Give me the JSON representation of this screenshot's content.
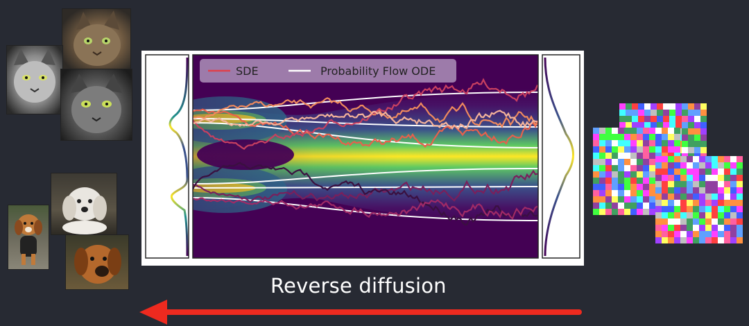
{
  "caption": "Reverse diffusion",
  "legend": {
    "sde_label": "SDE",
    "ode_label": "Probability Flow ODE"
  },
  "images": {
    "cats": [
      "cat-photo",
      "cat-photo",
      "cat-photo"
    ],
    "dogs": [
      "dog-photo",
      "dog-photo",
      "dog-photo"
    ],
    "noise": [
      "noise-patch",
      "noise-patch",
      "noise-patch"
    ]
  },
  "colors": {
    "background": "#272a33",
    "arrow": "#ee2a1f",
    "ode_line": "#ffffff",
    "sde_lines": [
      "#e8604c",
      "#f08a5d",
      "#c94060",
      "#f5b39a",
      "#7a1f5c",
      "#3a1040",
      "#a02a66"
    ]
  }
}
